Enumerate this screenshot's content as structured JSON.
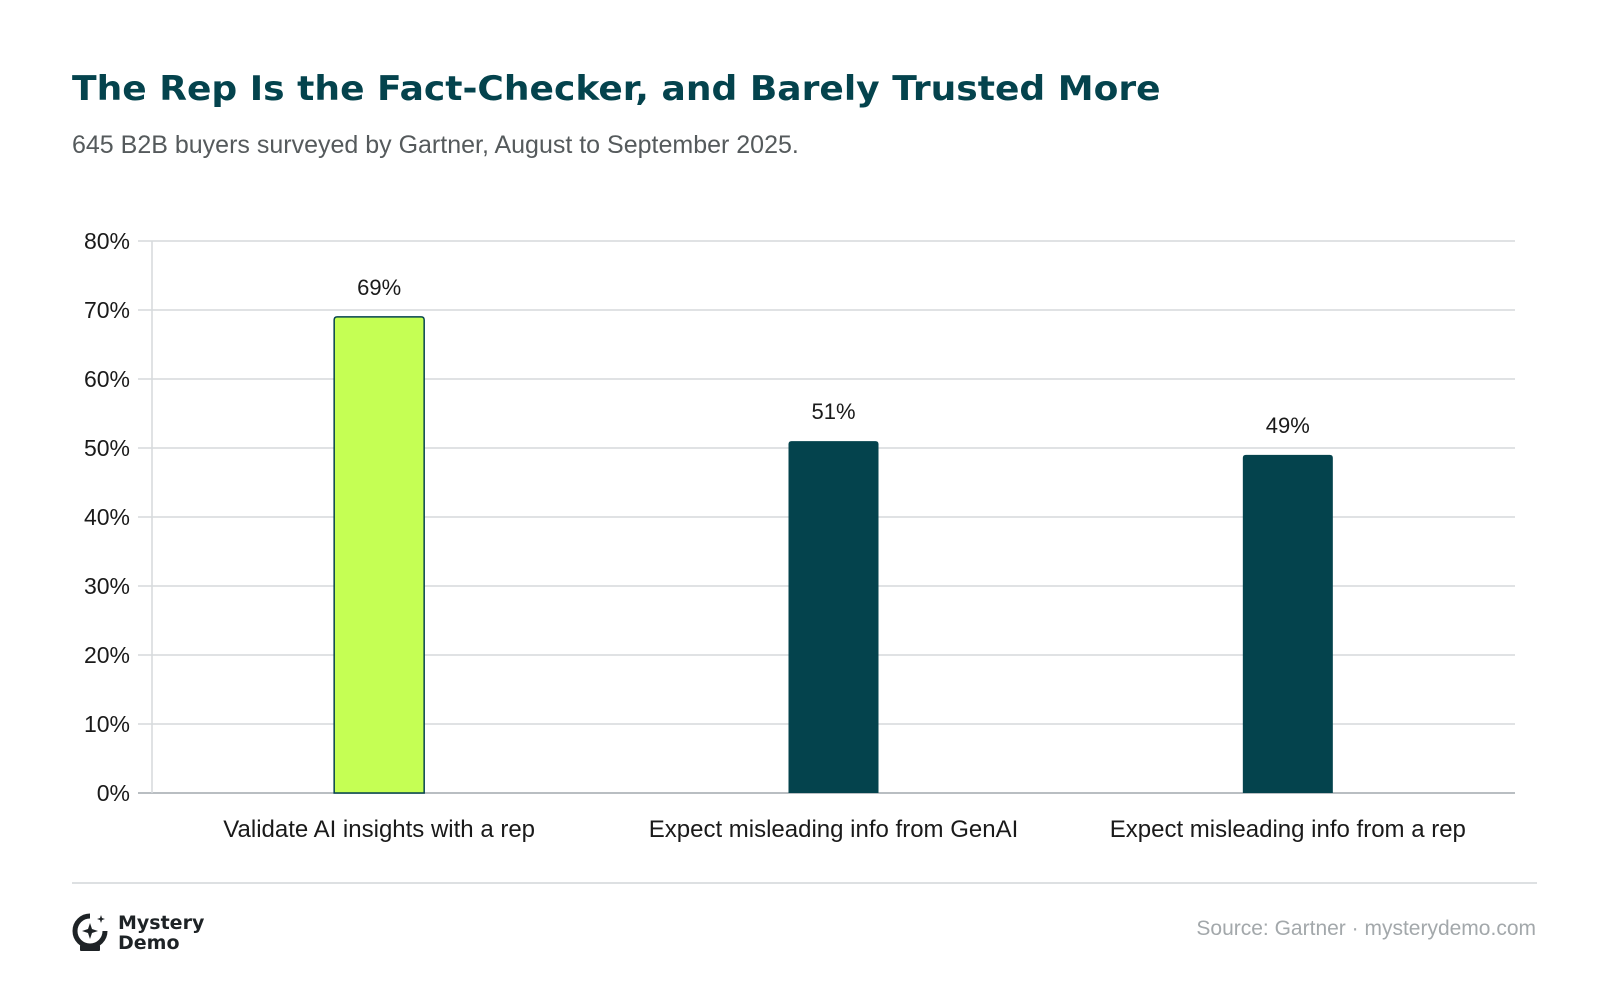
{
  "header": {
    "title": "The Rep Is the Fact-Checker, and Barely Trusted More",
    "subtitle": "645 B2B buyers surveyed by Gartner, August to September 2025."
  },
  "footer": {
    "brand_line1": "Mystery",
    "brand_line2": "Demo",
    "source": "Source: Gartner · mysterydemo.com"
  },
  "colors": {
    "highlight": "#c5ff54",
    "primary": "#04434d",
    "grid": "#d5d9dc",
    "text": "#1a1a1a"
  },
  "chart_data": {
    "type": "bar",
    "title": "The Rep Is the Fact-Checker, and Barely Trusted More",
    "subtitle": "645 B2B buyers surveyed by Gartner, August to September 2025.",
    "categories": [
      "Validate AI insights with a rep",
      "Expect misleading info from GenAI",
      "Expect misleading info from a rep"
    ],
    "values": [
      69,
      51,
      49
    ],
    "data_labels": [
      "69%",
      "51%",
      "49%"
    ],
    "bar_colors": [
      "#c5ff54",
      "#04434d",
      "#04434d"
    ],
    "ylim": [
      0,
      80
    ],
    "yticks": [
      0,
      10,
      20,
      30,
      40,
      50,
      60,
      70,
      80
    ],
    "ytick_labels": [
      "0%",
      "10%",
      "20%",
      "30%",
      "40%",
      "50%",
      "60%",
      "70%",
      "80%"
    ],
    "grid": true,
    "legend": "none"
  }
}
